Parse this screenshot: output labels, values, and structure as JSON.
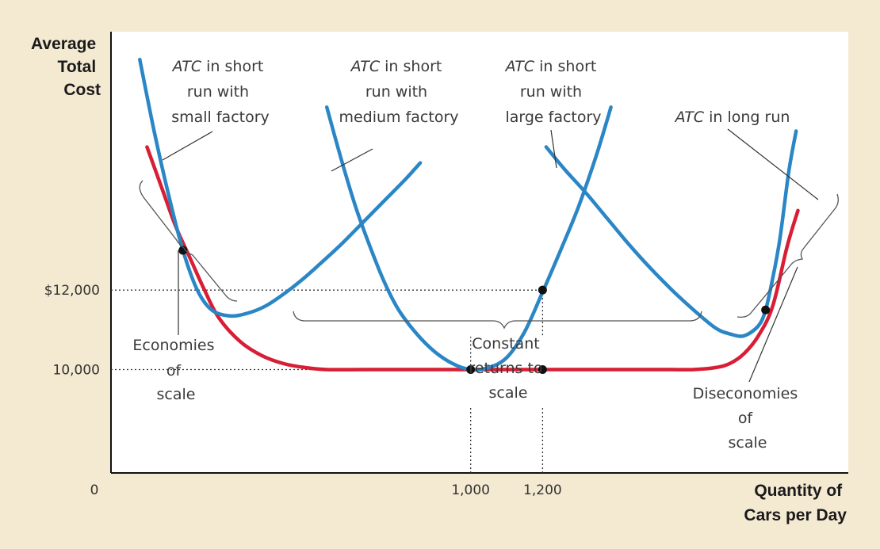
{
  "chart_data": {
    "type": "line",
    "xlabel": [
      "Quantity of",
      "Cars per Day"
    ],
    "ylabel": [
      "Average",
      "Total",
      "Cost"
    ],
    "origin_label": "0",
    "x_ticks": [
      {
        "value": 1000,
        "label": "1,000"
      },
      {
        "value": 1200,
        "label": "1,200"
      }
    ],
    "y_ticks": [
      {
        "value": 12000,
        "label": "$12,000"
      },
      {
        "value": 10000,
        "label": "10,000"
      }
    ],
    "series": [
      {
        "name": "ATC in short run with small factory",
        "color": "#2a86c5",
        "x": [
          80,
          120,
          160,
          200,
          240,
          280,
          330,
          380,
          430,
          480,
          530,
          580,
          640,
          700,
          760,
          820,
          860
        ],
        "y": [
          17800,
          16000,
          14400,
          13000,
          12000,
          11500,
          11350,
          11420,
          11600,
          11900,
          12250,
          12650,
          13150,
          13700,
          14250,
          14800,
          15200
        ]
      },
      {
        "name": "ATC in short run with medium factory",
        "color": "#2a86c5",
        "x": [
          600,
          640,
          680,
          720,
          760,
          800,
          850,
          900,
          950,
          1000,
          1050,
          1100,
          1150,
          1200,
          1250,
          1300,
          1350,
          1390
        ],
        "y": [
          16600,
          15300,
          14100,
          13100,
          12200,
          11500,
          10900,
          10450,
          10150,
          10000,
          10050,
          10300,
          10950,
          11950,
          13000,
          14100,
          15400,
          16600
        ]
      },
      {
        "name": "ATC in short run with large factory",
        "color": "#2a86c5",
        "x": [
          1210,
          1260,
          1320,
          1380,
          1440,
          1500,
          1560,
          1620,
          1680,
          1720,
          1760,
          1800,
          1820,
          1840,
          1860,
          1885,
          1905
        ],
        "y": [
          15600,
          15050,
          14450,
          13800,
          13150,
          12550,
          12000,
          11500,
          11050,
          10900,
          10850,
          11100,
          11500,
          12300,
          13300,
          15000,
          16000
        ]
      },
      {
        "name": "ATC in long run",
        "color": "#d81e35",
        "x": [
          100,
          140,
          180,
          220,
          260,
          300,
          360,
          420,
          480,
          540,
          600,
          700,
          800,
          900,
          1000,
          1100,
          1200,
          1300,
          1400,
          1500,
          1560,
          1620,
          1680,
          1720,
          1760,
          1800,
          1840,
          1880,
          1910
        ],
        "y": [
          15600,
          14600,
          13600,
          12800,
          12000,
          11300,
          10700,
          10350,
          10150,
          10050,
          10000,
          10000,
          10000,
          10000,
          10000,
          10000,
          10000,
          10000,
          10000,
          10000,
          10000,
          10000,
          10050,
          10150,
          10400,
          10850,
          11600,
          13100,
          14000
        ]
      }
    ],
    "points": [
      {
        "x": 200,
        "y": 13000
      },
      {
        "x": 1000,
        "y": 10000
      },
      {
        "x": 1200,
        "y": 10000
      },
      {
        "x": 1200,
        "y": 12000
      },
      {
        "x": 1820,
        "y": 11500
      }
    ],
    "annotations": {
      "small": {
        "prefix": "ATC",
        "rest": " in short",
        "line2": "run with",
        "line3": "small factory"
      },
      "medium": {
        "prefix": "ATC",
        "rest": " in short",
        "line2": "run with",
        "line3": "medium factory"
      },
      "large": {
        "prefix": "ATC",
        "rest": " in short",
        "line2": "run with",
        "line3": "large factory"
      },
      "long": {
        "prefix": "ATC",
        "rest": " in long run"
      }
    },
    "regions": {
      "economies": [
        "Economies",
        "of",
        "scale"
      ],
      "constant": [
        "Constant",
        "returns to",
        "scale"
      ],
      "diseconomies": [
        "Diseconomies",
        "of",
        "scale"
      ]
    },
    "xlim": [
      0,
      2050
    ],
    "ylim": [
      7400,
      18500
    ]
  }
}
